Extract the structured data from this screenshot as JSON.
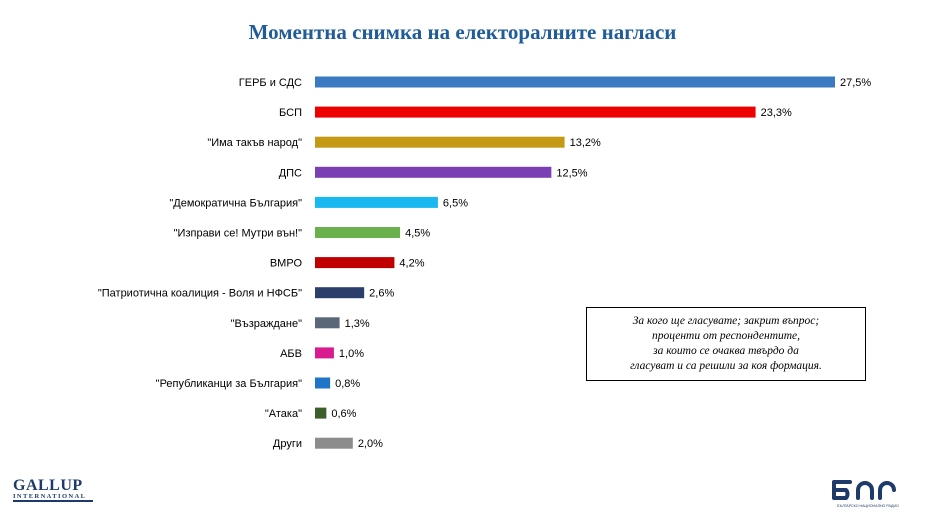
{
  "title": "Моментна снимка на електоралните нагласи",
  "chart_data": {
    "type": "bar",
    "orientation": "horizontal",
    "title": "Моментна снимка на електоралните нагласи",
    "categories": [
      "ГЕРБ и СДС",
      "БСП",
      "\"Има такъв народ\"",
      "ДПС",
      "\"Демократична България\"",
      "\"Изправи се! Мутри вън!\"",
      "ВМРО",
      "\"Патриотична коалиция - Воля и НФСБ\"",
      "\"Възраждане\"",
      "АБВ",
      "\"Републиканци за България\"",
      "\"Атака\"",
      "Други"
    ],
    "values": [
      27.5,
      23.3,
      13.2,
      12.5,
      6.5,
      4.5,
      4.2,
      2.6,
      1.3,
      1.0,
      0.8,
      0.6,
      2.0
    ],
    "value_labels": [
      "27,5%",
      "23,3%",
      "13,2%",
      "12,5%",
      "6,5%",
      "4,5%",
      "4,2%",
      "2,6%",
      "1,3%",
      "1,0%",
      "0,8%",
      "0,6%",
      "2,0%"
    ],
    "colors": [
      "#3a7ac2",
      "#ee0000",
      "#c49a14",
      "#7a3fb2",
      "#1ab8f0",
      "#6ab04c",
      "#c00000",
      "#2c3f6b",
      "#5a6778",
      "#d81b8f",
      "#1f76c8",
      "#3b5e2b",
      "#8c8c8c"
    ],
    "unit": "%",
    "grid": false,
    "legend": "none"
  },
  "note": {
    "lines": [
      "За кого ще гласувате; закрит въпрос;",
      "проценти от респондентите,",
      "за които се очаква твърдо да",
      "гласуват и са решили за коя формация."
    ]
  },
  "logos": {
    "gallup_main": "GALLUP",
    "gallup_sub": "INTERNATIONAL",
    "bnr_main": "БНР",
    "bnr_sub": "БЪЛГАРСКО НАЦИОНАЛНО РАДИО"
  }
}
